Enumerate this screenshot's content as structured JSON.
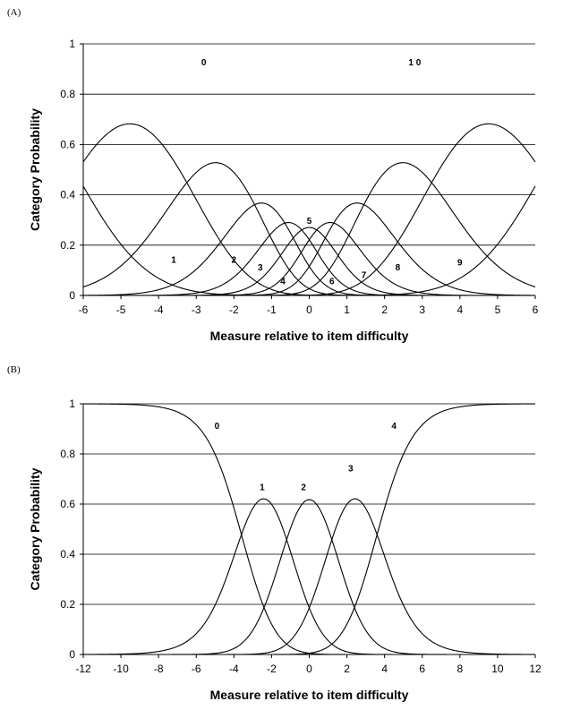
{
  "panels": [
    {
      "label": "(A)"
    },
    {
      "label": "(B)"
    }
  ],
  "chart_data": [
    {
      "type": "line",
      "panel": "(A)",
      "xlabel": "Measure relative to item difficulty",
      "ylabel": "Category Probability",
      "xlim": [
        -6,
        6
      ],
      "ylim": [
        0,
        1
      ],
      "xticks": [
        -6,
        -5,
        -4,
        -3,
        -2,
        -1,
        0,
        1,
        2,
        3,
        4,
        5,
        6
      ],
      "yticks": [
        0,
        0.2,
        0.4,
        0.6,
        0.8,
        1
      ],
      "ytick_labels": [
        "0",
        "0.2",
        "0.4",
        "0.6",
        "0.8",
        "1"
      ],
      "grid": "horizontal",
      "model": "rating-scale category probability curves",
      "thresholds": [
        -6.2,
        -3.25,
        -1.45,
        -0.65,
        -0.2,
        0.2,
        0.65,
        1.45,
        3.25,
        6.2
      ],
      "curve_labels": [
        {
          "text": "0",
          "x": -2.8,
          "y": 0.915
        },
        {
          "text": "1",
          "x": -3.6,
          "y": 0.13
        },
        {
          "text": "2",
          "x": -2.0,
          "y": 0.13
        },
        {
          "text": "3",
          "x": -1.3,
          "y": 0.1
        },
        {
          "text": "4",
          "x": -0.7,
          "y": 0.045
        },
        {
          "text": "5",
          "x": 0.0,
          "y": 0.285
        },
        {
          "text": "6",
          "x": 0.6,
          "y": 0.045
        },
        {
          "text": "7",
          "x": 1.45,
          "y": 0.07
        },
        {
          "text": "8",
          "x": 2.35,
          "y": 0.1
        },
        {
          "text": "9",
          "x": 4.0,
          "y": 0.12
        },
        {
          "text": "1 0",
          "x": 2.8,
          "y": 0.915
        }
      ]
    },
    {
      "type": "line",
      "panel": "(B)",
      "xlabel": "Measure relative to item difficulty",
      "ylabel": "Category Probability",
      "xlim": [
        -12,
        12
      ],
      "ylim": [
        0,
        1
      ],
      "xticks": [
        -12,
        -10,
        -8,
        -6,
        -4,
        -2,
        0,
        2,
        4,
        6,
        8,
        10,
        12
      ],
      "yticks": [
        0,
        0.2,
        0.4,
        0.6,
        0.8,
        1
      ],
      "ytick_labels": [
        "0",
        "0.2",
        "0.4",
        "0.6",
        "0.8",
        "1"
      ],
      "grid": "horizontal",
      "model": "rating-scale category probability curves",
      "thresholds": [
        -3.6,
        -1.2,
        1.2,
        3.6
      ],
      "curve_labels": [
        {
          "text": "0",
          "x": -4.9,
          "y": 0.9
        },
        {
          "text": "1",
          "x": -2.5,
          "y": 0.655
        },
        {
          "text": "2",
          "x": -0.3,
          "y": 0.655
        },
        {
          "text": "3",
          "x": 2.2,
          "y": 0.73
        },
        {
          "text": "4",
          "x": 4.5,
          "y": 0.9
        }
      ]
    }
  ]
}
